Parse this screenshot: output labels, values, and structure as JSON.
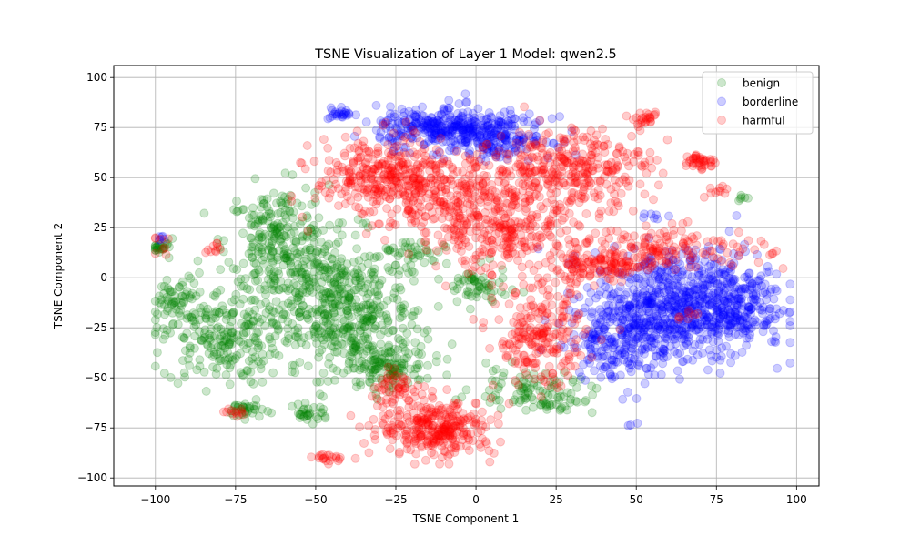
{
  "chart_data": {
    "type": "scatter",
    "title": "TSNE Visualization of Layer 1 Model: qwen2.5",
    "xlabel": "TSNE Component 1",
    "ylabel": "TSNE Component 2",
    "xlim": [
      -113,
      107
    ],
    "ylim": [
      -104,
      106
    ],
    "xticks": [
      -100,
      -75,
      -50,
      -25,
      0,
      25,
      50,
      75,
      100
    ],
    "yticks": [
      -100,
      -75,
      -50,
      -25,
      0,
      25,
      50,
      75,
      100
    ],
    "grid": true,
    "legend_position": "top-right",
    "marker_alpha": 0.2,
    "series": [
      {
        "name": "benign",
        "color": "#008000",
        "clusters": [
          {
            "cx": -45,
            "cy": -10,
            "sx": 12,
            "sy": 16,
            "n": 420
          },
          {
            "cx": -62,
            "cy": 18,
            "sx": 8,
            "sy": 14,
            "n": 240
          },
          {
            "cx": -80,
            "cy": -30,
            "sx": 9,
            "sy": 12,
            "n": 220
          },
          {
            "cx": -93,
            "cy": -12,
            "sx": 4,
            "sy": 7,
            "n": 60
          },
          {
            "cx": -28,
            "cy": -45,
            "sx": 6,
            "sy": 5,
            "n": 110
          },
          {
            "cx": -35,
            "cy": -30,
            "sx": 10,
            "sy": 10,
            "n": 150
          },
          {
            "cx": -72,
            "cy": -66,
            "sx": 3,
            "sy": 2,
            "n": 35
          },
          {
            "cx": -52,
            "cy": -68,
            "sx": 3,
            "sy": 2,
            "n": 30
          },
          {
            "cx": -98,
            "cy": 15,
            "sx": 2,
            "sy": 2,
            "n": 25
          },
          {
            "cx": 0,
            "cy": -5,
            "sx": 5,
            "sy": 5,
            "n": 60
          },
          {
            "cx": 15,
            "cy": -55,
            "sx": 8,
            "sy": 5,
            "n": 70
          },
          {
            "cx": 25,
            "cy": -60,
            "sx": 6,
            "sy": 4,
            "n": 40
          },
          {
            "cx": -20,
            "cy": 10,
            "sx": 5,
            "sy": 5,
            "n": 40
          },
          {
            "cx": 82,
            "cy": 40,
            "sx": 1,
            "sy": 1,
            "n": 6
          }
        ]
      },
      {
        "name": "borderline",
        "color": "#0000ff",
        "clusters": [
          {
            "cx": 60,
            "cy": -15,
            "sx": 12,
            "sy": 14,
            "n": 600
          },
          {
            "cx": 78,
            "cy": -12,
            "sx": 9,
            "sy": 12,
            "n": 300
          },
          {
            "cx": 45,
            "cy": -30,
            "sx": 8,
            "sy": 10,
            "n": 200
          },
          {
            "cx": -15,
            "cy": 75,
            "sx": 8,
            "sy": 5,
            "n": 200
          },
          {
            "cx": 0,
            "cy": 72,
            "sx": 8,
            "sy": 6,
            "n": 200
          },
          {
            "cx": 12,
            "cy": 70,
            "sx": 6,
            "sy": 5,
            "n": 80
          },
          {
            "cx": -42,
            "cy": 82,
            "sx": 2,
            "sy": 1.5,
            "n": 25
          },
          {
            "cx": -98,
            "cy": 19,
            "sx": 1,
            "sy": 1,
            "n": 6
          },
          {
            "cx": 55,
            "cy": 32,
            "sx": 2,
            "sy": 2,
            "n": 6
          },
          {
            "cx": 48,
            "cy": -74,
            "sx": 1,
            "sy": 1,
            "n": 3
          }
        ]
      },
      {
        "name": "harmful",
        "color": "#ff0000",
        "clusters": [
          {
            "cx": -30,
            "cy": 50,
            "sx": 10,
            "sy": 10,
            "n": 300
          },
          {
            "cx": -5,
            "cy": 40,
            "sx": 12,
            "sy": 12,
            "n": 320
          },
          {
            "cx": 30,
            "cy": 55,
            "sx": 12,
            "sy": 10,
            "n": 320
          },
          {
            "cx": 10,
            "cy": 20,
            "sx": 12,
            "sy": 10,
            "n": 220
          },
          {
            "cx": -12,
            "cy": -75,
            "sx": 9,
            "sy": 7,
            "n": 320
          },
          {
            "cx": 20,
            "cy": -30,
            "sx": 7,
            "sy": 12,
            "n": 220
          },
          {
            "cx": 38,
            "cy": 5,
            "sx": 8,
            "sy": 4,
            "n": 120
          },
          {
            "cx": 60,
            "cy": 15,
            "sx": 15,
            "sy": 5,
            "n": 160
          },
          {
            "cx": 70,
            "cy": 58,
            "sx": 2.5,
            "sy": 2,
            "n": 40
          },
          {
            "cx": 53,
            "cy": 79,
            "sx": 2,
            "sy": 1.5,
            "n": 25
          },
          {
            "cx": -45,
            "cy": -90,
            "sx": 3,
            "sy": 1,
            "n": 20
          },
          {
            "cx": -75,
            "cy": -68,
            "sx": 2,
            "sy": 1,
            "n": 12
          },
          {
            "cx": -82,
            "cy": 15,
            "sx": 1.5,
            "sy": 2,
            "n": 10
          },
          {
            "cx": -98,
            "cy": 15,
            "sx": 2,
            "sy": 3,
            "n": 8
          },
          {
            "cx": -25,
            "cy": -55,
            "sx": 5,
            "sy": 4,
            "n": 50
          },
          {
            "cx": 65,
            "cy": -18,
            "sx": 2,
            "sy": 2,
            "n": 8
          },
          {
            "cx": 75,
            "cy": 43,
            "sx": 3,
            "sy": 2,
            "n": 10
          }
        ]
      }
    ]
  }
}
